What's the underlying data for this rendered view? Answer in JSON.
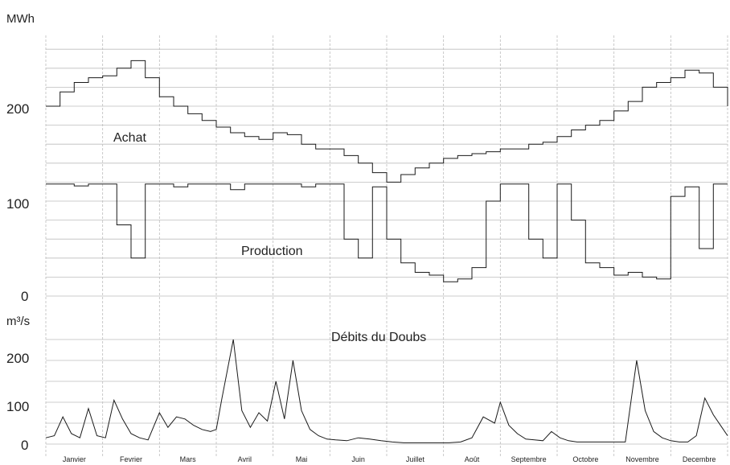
{
  "chart_data": [
    {
      "type": "line",
      "title": "",
      "ylabel": "MWh",
      "ylim": [
        0,
        260
      ],
      "yticks": [
        0,
        100,
        200
      ],
      "grid": true,
      "categories": [
        "Janvier",
        "Fevrier",
        "Mars",
        "Avril",
        "Mai",
        "Juin",
        "Juillet",
        "Août",
        "Septembre",
        "Octobre",
        "Novembre",
        "Decembre"
      ],
      "series": [
        {
          "name": "Achat",
          "x": [
            0,
            0.25,
            0.5,
            0.75,
            1,
            1.25,
            1.5,
            1.75,
            2,
            2.25,
            2.5,
            2.75,
            3,
            3.25,
            3.5,
            3.75,
            4,
            4.25,
            4.5,
            4.75,
            5,
            5.25,
            5.5,
            5.75,
            6,
            6.25,
            6.5,
            6.75,
            7,
            7.25,
            7.5,
            7.75,
            8,
            8.25,
            8.5,
            8.75,
            9,
            9.25,
            9.5,
            9.75,
            10,
            10.25,
            10.5,
            10.75,
            11,
            11.25,
            11.5,
            11.75,
            12
          ],
          "values": [
            200,
            215,
            225,
            230,
            232,
            240,
            248,
            230,
            210,
            200,
            192,
            185,
            178,
            172,
            168,
            165,
            172,
            170,
            160,
            155,
            155,
            148,
            140,
            130,
            120,
            128,
            135,
            140,
            145,
            148,
            150,
            152,
            155,
            155,
            160,
            162,
            168,
            175,
            180,
            185,
            195,
            205,
            220,
            225,
            230,
            238,
            235,
            220,
            200
          ]
        },
        {
          "name": "Production",
          "x": [
            0,
            0.25,
            0.5,
            0.75,
            1,
            1.25,
            1.5,
            1.75,
            2,
            2.25,
            2.5,
            2.75,
            3,
            3.25,
            3.5,
            3.75,
            4,
            4.25,
            4.5,
            4.75,
            5,
            5.25,
            5.5,
            5.75,
            6,
            6.25,
            6.5,
            6.75,
            7,
            7.25,
            7.5,
            7.75,
            8,
            8.25,
            8.5,
            8.75,
            9,
            9.25,
            9.5,
            9.75,
            10,
            10.25,
            10.5,
            10.75,
            11,
            11.25,
            11.5,
            11.75,
            12
          ],
          "values": [
            118,
            118,
            116,
            118,
            118,
            75,
            40,
            118,
            118,
            115,
            118,
            118,
            118,
            112,
            118,
            118,
            118,
            118,
            115,
            118,
            118,
            60,
            40,
            115,
            60,
            35,
            25,
            22,
            15,
            18,
            30,
            100,
            118,
            118,
            60,
            40,
            118,
            80,
            35,
            30,
            22,
            25,
            20,
            18,
            105,
            115,
            50,
            118,
            118
          ]
        }
      ]
    },
    {
      "type": "line",
      "title": "Débits du Doubs",
      "ylabel": "m³/s",
      "ylim": [
        0,
        260
      ],
      "yticks": [
        0,
        100,
        200
      ],
      "grid": true,
      "categories": [
        "Janvier",
        "Fevrier",
        "Mars",
        "Avril",
        "Mai",
        "Juin",
        "Juillet",
        "Août",
        "Septembre",
        "Octobre",
        "Novembre",
        "Decembre"
      ],
      "series": [
        {
          "name": "Débits du Doubs",
          "x": [
            0,
            0.15,
            0.3,
            0.45,
            0.6,
            0.75,
            0.9,
            1.05,
            1.2,
            1.35,
            1.5,
            1.65,
            1.8,
            2.0,
            2.15,
            2.3,
            2.45,
            2.6,
            2.75,
            2.9,
            3.0,
            3.1,
            3.3,
            3.45,
            3.6,
            3.75,
            3.9,
            4.05,
            4.2,
            4.35,
            4.5,
            4.65,
            4.8,
            4.95,
            5.1,
            5.3,
            5.5,
            5.7,
            5.9,
            6.1,
            6.3,
            6.5,
            6.7,
            6.9,
            7.1,
            7.3,
            7.5,
            7.7,
            7.9,
            8.0,
            8.15,
            8.3,
            8.45,
            8.6,
            8.75,
            8.9,
            9.05,
            9.2,
            9.35,
            9.5,
            9.65,
            9.8,
            10.0,
            10.2,
            10.4,
            10.55,
            10.7,
            10.85,
            11.0,
            11.15,
            11.3,
            11.45,
            11.6,
            11.75,
            11.9,
            12.0
          ],
          "values": [
            15,
            20,
            65,
            25,
            15,
            85,
            20,
            15,
            105,
            60,
            25,
            15,
            10,
            75,
            40,
            65,
            60,
            45,
            35,
            30,
            35,
            110,
            250,
            80,
            40,
            75,
            55,
            150,
            60,
            200,
            80,
            35,
            20,
            12,
            10,
            8,
            15,
            12,
            8,
            5,
            3,
            3,
            3,
            3,
            3,
            5,
            15,
            65,
            50,
            100,
            45,
            25,
            12,
            10,
            8,
            30,
            15,
            8,
            5,
            5,
            5,
            5,
            5,
            5,
            200,
            80,
            30,
            15,
            8,
            5,
            5,
            20,
            110,
            70,
            40,
            20
          ]
        }
      ]
    }
  ],
  "labels": {
    "top_unit": "MWh",
    "top_ticks": [
      "200",
      "100",
      "0"
    ],
    "achat": "Achat",
    "production": "Production",
    "bottom_unit": "m³/s",
    "bottom_ticks": [
      "200",
      "100",
      "0"
    ],
    "doubs": "Débits du Doubs"
  },
  "months": [
    "Janvier",
    "Fevrier",
    "Mars",
    "Avril",
    "Mai",
    "Juin",
    "Juillet",
    "Août",
    "Septembre",
    "Octobre",
    "Novembre",
    "Decembre"
  ],
  "colors": {
    "line": "#1a1a1a",
    "grid": "#bdbdbd",
    "background": "#ffffff"
  }
}
